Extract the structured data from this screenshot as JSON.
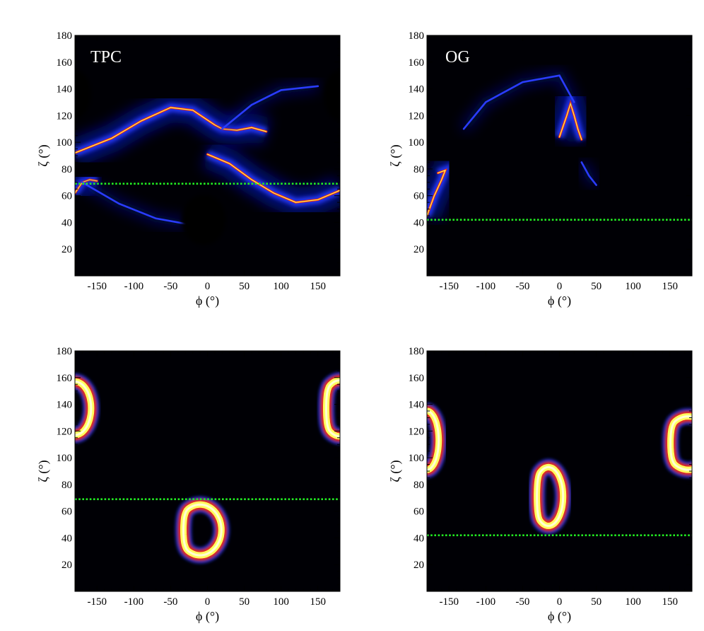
{
  "chart_data": [
    {
      "type": "heatmap",
      "title": "TPC",
      "xlabel": "ϕ (°)",
      "ylabel": "ζ (°)",
      "xlim": [
        -180,
        180
      ],
      "ylim": [
        0,
        180
      ],
      "xticks": [
        -150,
        -100,
        -50,
        0,
        50,
        100,
        150
      ],
      "yticks": [
        20,
        40,
        60,
        80,
        100,
        120,
        140,
        160,
        180
      ],
      "reference_line": {
        "zeta": 69,
        "color": "#22ee22",
        "style": "dotted"
      },
      "colormap": [
        "#000000",
        "#0010a0",
        "#2a3cff",
        "#ff2a00",
        "#ffff60",
        "#ffffff"
      ],
      "caustics": [
        {
          "name": "upper wave",
          "points": [
            [
              -180,
              92
            ],
            [
              -130,
              103
            ],
            [
              -90,
              116
            ],
            [
              -50,
              126
            ],
            [
              -20,
              124
            ],
            [
              10,
              113
            ],
            [
              20,
              110
            ],
            [
              40,
              109
            ],
            [
              60,
              111
            ],
            [
              80,
              108
            ]
          ]
        },
        {
          "name": "lower wave",
          "points": [
            [
              0,
              91
            ],
            [
              30,
              84
            ],
            [
              60,
              72
            ],
            [
              90,
              62
            ],
            [
              120,
              55
            ],
            [
              150,
              57
            ],
            [
              180,
              64
            ]
          ]
        },
        {
          "name": "left edge",
          "points": [
            [
              -180,
              62
            ],
            [
              -170,
              70
            ],
            [
              -160,
              72
            ],
            [
              -150,
              71
            ]
          ]
        },
        {
          "name": "faint upper arc",
          "points": [
            [
              20,
              110
            ],
            [
              60,
              128
            ],
            [
              100,
              139
            ],
            [
              150,
              142
            ]
          ]
        },
        {
          "name": "faint lower arc",
          "points": [
            [
              -170,
              70
            ],
            [
              -120,
              54
            ],
            [
              -70,
              43
            ],
            [
              -30,
              39
            ]
          ]
        }
      ],
      "dark_holes": [
        {
          "phi": -5,
          "zeta": 42,
          "rphi": 30,
          "rzeta": 19
        },
        {
          "phi": -180,
          "zeta": 136,
          "rphi": 22,
          "rzeta": 18
        },
        {
          "phi": 180,
          "zeta": 135,
          "rphi": 22,
          "rzeta": 19
        }
      ]
    },
    {
      "type": "heatmap",
      "title": "OG",
      "xlabel": "ϕ (°)",
      "ylabel": "ζ (°)",
      "xlim": [
        -180,
        180
      ],
      "ylim": [
        0,
        180
      ],
      "xticks": [
        -150,
        -100,
        -50,
        0,
        50,
        100,
        150
      ],
      "yticks": [
        20,
        40,
        60,
        80,
        100,
        120,
        140,
        160,
        180
      ],
      "reference_line": {
        "zeta": 42,
        "color": "#22ee22",
        "style": "dotted"
      },
      "colormap": [
        "#000000",
        "#0010a0",
        "#2a3cff",
        "#ff2a00",
        "#ffff60",
        "#ffffff"
      ],
      "caustics": [
        {
          "name": "upper cusp",
          "points": [
            [
              0,
              104
            ],
            [
              10,
              120
            ],
            [
              15,
              129
            ],
            [
              20,
              120
            ],
            [
              25,
              110
            ],
            [
              30,
              102
            ]
          ]
        },
        {
          "name": "left cusp",
          "points": [
            [
              -180,
              45
            ],
            [
              -170,
              60
            ],
            [
              -160,
              72
            ],
            [
              -155,
              79
            ],
            [
              -165,
              77
            ]
          ]
        },
        {
          "name": "faint upper arc",
          "points": [
            [
              -130,
              110
            ],
            [
              -100,
              130
            ],
            [
              -50,
              145
            ],
            [
              0,
              150
            ],
            [
              20,
              130
            ]
          ]
        },
        {
          "name": "faint lower arc",
          "points": [
            [
              30,
              85
            ],
            [
              40,
              75
            ],
            [
              50,
              68
            ]
          ]
        }
      ],
      "dark_holes": []
    },
    {
      "type": "heatmap",
      "xlabel": "ϕ (°)",
      "ylabel": "ζ (°)",
      "xlim": [
        -180,
        180
      ],
      "ylim": [
        0,
        180
      ],
      "xticks": [
        -150,
        -100,
        -50,
        0,
        50,
        100,
        150
      ],
      "yticks": [
        20,
        40,
        60,
        80,
        100,
        120,
        140,
        160,
        180
      ],
      "reference_line": {
        "zeta": 69,
        "color": "#22ee22",
        "style": "dotted"
      },
      "colormap": [
        "#000000",
        "#0010a0",
        "#2a3cff",
        "#ff2a00",
        "#ffff60",
        "#ffffff"
      ],
      "rings": [
        {
          "phi": -10,
          "zeta": 46,
          "rphi": 29,
          "rzeta": 19,
          "dent": 1
        },
        {
          "phi": 180,
          "zeta": 137,
          "rphi": 24,
          "rzeta": 21,
          "dent": 1
        },
        {
          "phi": -180,
          "zeta": 137,
          "rphi": 22,
          "rzeta": 20,
          "dent": 0
        }
      ]
    },
    {
      "type": "heatmap",
      "xlabel": "ϕ (°)",
      "ylabel": "ζ (°)",
      "xlim": [
        -180,
        180
      ],
      "ylim": [
        0,
        180
      ],
      "xticks": [
        -150,
        -100,
        -50,
        0,
        50,
        100,
        150
      ],
      "yticks": [
        20,
        40,
        60,
        80,
        100,
        120,
        140,
        160,
        180
      ],
      "reference_line": {
        "zeta": 42,
        "color": "#22ee22",
        "style": "dotted"
      },
      "colormap": [
        "#000000",
        "#0010a0",
        "#2a3cff",
        "#ff2a00",
        "#ffff60",
        "#ffffff"
      ],
      "rings": [
        {
          "phi": -15,
          "zeta": 71,
          "rphi": 20,
          "rzeta": 22,
          "dent": 1
        },
        {
          "phi": 175,
          "zeta": 111,
          "rphi": 31,
          "rzeta": 20,
          "dent": 1
        },
        {
          "phi": -180,
          "zeta": 113,
          "rphi": 16,
          "rzeta": 22,
          "dent": 0
        }
      ]
    }
  ]
}
